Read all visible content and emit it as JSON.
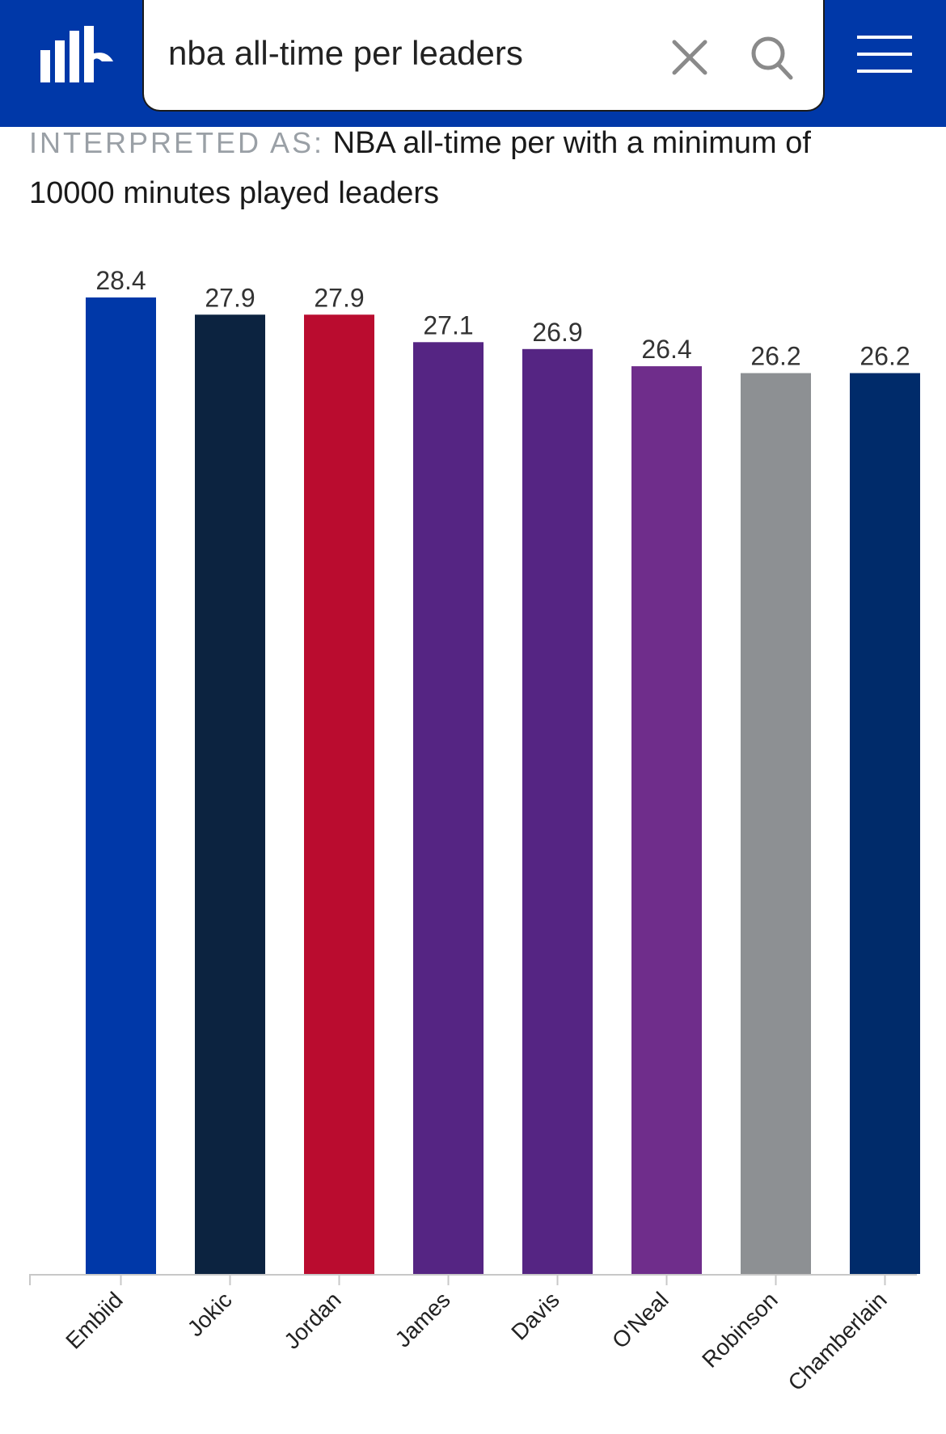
{
  "header": {
    "logo_name": "site-logo",
    "search_value": "nba all-time per leaders",
    "brand_color": "#0038a8"
  },
  "interpretation": {
    "label": "INTERPRETED AS:",
    "text": "NBA all-time per with a minimum of 10000 minutes played leaders"
  },
  "chart_data": {
    "type": "bar",
    "categories": [
      "Embiid",
      "Jokic",
      "Jordan",
      "James",
      "Davis",
      "O'Neal",
      "Robinson",
      "Chamberlain"
    ],
    "values": [
      28.4,
      27.9,
      27.9,
      27.1,
      26.9,
      26.4,
      26.2,
      26.2
    ],
    "colors": [
      "#0038a8",
      "#0c2340",
      "#ba0c2f",
      "#552583",
      "#552583",
      "#6f2d8b",
      "#8d9093",
      "#002b6a"
    ],
    "data_labels": [
      "28.4",
      "27.9",
      "27.9",
      "27.1",
      "26.9",
      "26.4",
      "26.2",
      "26.2"
    ],
    "title": "",
    "xlabel": "",
    "ylabel": "",
    "grid": false,
    "legend": "none"
  }
}
